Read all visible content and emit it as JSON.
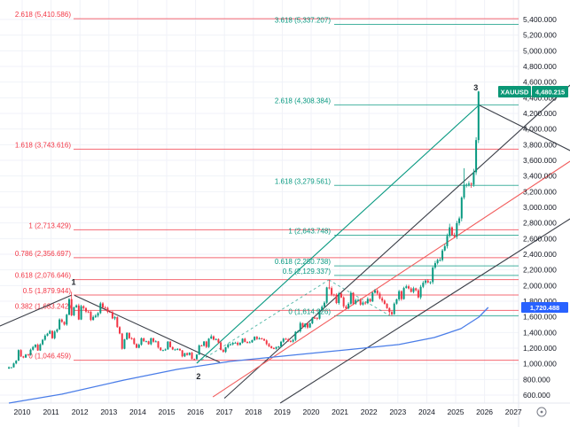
{
  "symbol_badge": {
    "symbol": "XAUUSD",
    "price": "4,480.215",
    "color": "#0a9776"
  },
  "ma_badge": {
    "value": "1,720.488",
    "color": "#2962ff"
  },
  "settings_icon": "circled-dot",
  "colors": {
    "candle_up": "#089981",
    "candle_down": "#f23645",
    "fib_red": "#f23645",
    "fib_green": "#089981",
    "trend_black": "#3a3e47",
    "trend_red": "#f25c5c",
    "ma_blue": "#4a7de8",
    "axis_text": "#131722",
    "grid": "#f0f2f8"
  },
  "price_axis_labels": [
    "5,400.000",
    "5,200.000",
    "5,000.000",
    "4,800.000",
    "4,600.000",
    "4,400.000",
    "4,200.000",
    "4,000.000",
    "3,800.000",
    "3,600.000",
    "3,400.000",
    "3,200.000",
    "3,000.000",
    "2,800.000",
    "2,600.000",
    "2,400.000",
    "2,200.000",
    "2,000.000",
    "1,800.000",
    "1,600.000",
    "1,400.000",
    "1,200.000",
    "1,000.000",
    "800.000",
    "600.000"
  ],
  "time_axis_labels": [
    "2010",
    "2011",
    "2012",
    "2013",
    "2014",
    "2015",
    "2016",
    "2017",
    "2018",
    "2019",
    "2020",
    "2021",
    "2022",
    "2023",
    "2024",
    "2025",
    "2026",
    "2027"
  ],
  "chart_data": {
    "type": "candlestick",
    "symbol": "XAUUSD",
    "timeframe": "monthly",
    "current_price": 4480.215,
    "ma_value": 1720.488,
    "price_scale": {
      "min": 600,
      "max": 5400,
      "step": 200
    },
    "time_scale": {
      "first_year_tick": 2010,
      "last_year_tick": 2027
    },
    "start_month": "2009-07",
    "prior_close": 940,
    "monthly_closes": [
      955,
      955,
      1005,
      1040,
      1175,
      1095,
      1080,
      1118,
      1115,
      1180,
      1215,
      1244,
      1170,
      1248,
      1307,
      1360,
      1385,
      1420,
      1327,
      1411,
      1439,
      1566,
      1536,
      1502,
      1628,
      1826,
      1620,
      1722,
      1746,
      1566,
      1737,
      1711,
      1668,
      1664,
      1560,
      1598,
      1615,
      1648,
      1772,
      1720,
      1715,
      1664,
      1661,
      1580,
      1596,
      1469,
      1387,
      1192,
      1312,
      1395,
      1327,
      1323,
      1253,
      1205,
      1244,
      1326,
      1288,
      1288,
      1250,
      1327,
      1282,
      1287,
      1208,
      1173,
      1175,
      1184,
      1283,
      1213,
      1183,
      1184,
      1190,
      1172,
      1095,
      1135,
      1114,
      1142,
      1061,
      1060,
      1118,
      1234,
      1232,
      1285,
      1215,
      1322,
      1351,
      1309,
      1316,
      1272,
      1178,
      1152,
      1211,
      1248,
      1249,
      1268,
      1269,
      1241,
      1269,
      1321,
      1280,
      1271,
      1275,
      1303,
      1345,
      1318,
      1325,
      1315,
      1298,
      1252,
      1224,
      1201,
      1192,
      1215,
      1222,
      1282,
      1321,
      1313,
      1292,
      1283,
      1305,
      1409,
      1414,
      1520,
      1472,
      1513,
      1464,
      1517,
      1589,
      1586,
      1577,
      1687,
      1730,
      1781,
      1976,
      1968,
      1886,
      1879,
      1777,
      1898,
      1848,
      1734,
      1708,
      1768,
      1907,
      1770,
      1814,
      1814,
      1757,
      1783,
      1775,
      1829,
      1797,
      1909,
      1937,
      1897,
      1837,
      1807,
      1766,
      1711,
      1661,
      1634,
      1769,
      1824,
      1928,
      1827,
      1969,
      1990,
      1963,
      1919,
      1965,
      1940,
      1849,
      1984,
      2036,
      2063,
      2040,
      2044,
      2230,
      2286,
      2327,
      2327,
      2448,
      2503,
      2635,
      2744,
      2643,
      2625,
      2798,
      2858,
      3124,
      3289,
      3289,
      3303,
      3290,
      3448,
      3859,
      4480
    ],
    "wick_extremes": {
      "2011-09": {
        "high": 1920.7
      },
      "2013-06": {
        "low": 1180.5
      },
      "2015-12": {
        "low": 1046.459
      },
      "2016-07": {
        "high": 1375.3
      },
      "2020-08": {
        "high": 2075.28
      },
      "2022-09": {
        "low": 1614.926
      },
      "2024-10": {
        "high": 2790.1
      },
      "2025-04": {
        "high": 3500.2
      },
      "2025-10": {
        "high": 4487
      }
    },
    "fib_extension_red": {
      "color": "#f23645",
      "levels": [
        {
          "label": "2.618 (5,410.586)",
          "price": 5410.586
        },
        {
          "label": "1.618 (3,743.616)",
          "price": 3743.616
        },
        {
          "label": "1 (2,713.429)",
          "price": 2713.429
        },
        {
          "label": "0.786 (2,356.697)",
          "price": 2356.697
        },
        {
          "label": "0.618 (2,076.646)",
          "price": 2076.646
        },
        {
          "label": "0.5 (1,879.944)",
          "price": 1879.944
        },
        {
          "label": "0.382 (1,683.242)",
          "price": 1683.242
        },
        {
          "label": "0 (1,046.459)",
          "price": 1046.459
        }
      ]
    },
    "fib_extension_green": {
      "color": "#089981",
      "levels": [
        {
          "label": "3.618 (5,337.207)",
          "price": 5337.207
        },
        {
          "label": "2.618 (4,308.384)",
          "price": 4308.384
        },
        {
          "label": "1.618 (3,279.561)",
          "price": 3279.561
        },
        {
          "label": "1 (2,643.748)",
          "price": 2643.748
        },
        {
          "label": "0.618 (2,250.738)",
          "price": 2250.738
        },
        {
          "label": "0.5 (2,129.337)",
          "price": 2129.337
        },
        {
          "label": "0 (1,614.926)",
          "price": 1614.926
        }
      ]
    },
    "wave_labels": [
      {
        "text": "1",
        "t": 2011.78,
        "p": 2010
      },
      {
        "text": "2",
        "t": 2016.1,
        "p": 804
      },
      {
        "text": "3",
        "t": 2025.7,
        "p": 4495
      }
    ],
    "trend_lines": [
      {
        "name": "wave-0-1-line",
        "color": "#3a3e47",
        "t1": 2009.23,
        "p1": 1483,
        "t2": 2011.72,
        "p2": 1879
      },
      {
        "name": "wave-1-2-line",
        "color": "#3a3e47",
        "t1": 2011.81,
        "p1": 1875,
        "t2": 2016.84,
        "p2": 1019
      },
      {
        "name": "triangle-green-line",
        "color": "#089981",
        "t1": 2016.04,
        "p1": 1008,
        "t2": 2025.83,
        "p2": 4313
      },
      {
        "name": "apex-descending-line",
        "color": "#3a3e47",
        "t1": 2025.83,
        "p1": 4302,
        "t2": 2028.96,
        "p2": 3725
      },
      {
        "name": "channel-upper-line",
        "color": "#3a3e47",
        "t1": 2017.0,
        "p1": 560,
        "t2": 2028.96,
        "p2": 4562
      },
      {
        "name": "channel-lower-line",
        "color": "#3a3e47",
        "t1": 2018.93,
        "p1": 498,
        "t2": 2028.96,
        "p2": 2853
      },
      {
        "name": "red-ascending-line",
        "color": "#f25c5c",
        "t1": 2016.6,
        "p1": 577,
        "t2": 2028.96,
        "p2": 3589
      }
    ],
    "dashed_connectors": [
      {
        "t1": 2016.04,
        "p1": 1008,
        "t2": 2020.61,
        "p2": 2072
      },
      {
        "t1": 2020.61,
        "p1": 2072,
        "t2": 2022.7,
        "p2": 1619
      }
    ],
    "ma_line_points": [
      [
        2009.54,
        498
      ],
      [
        2011.38,
        612
      ],
      [
        2013.53,
        793
      ],
      [
        2015.37,
        929
      ],
      [
        2017.21,
        1031
      ],
      [
        2019.36,
        1110
      ],
      [
        2021.5,
        1189
      ],
      [
        2023.04,
        1246
      ],
      [
        2024.26,
        1336
      ],
      [
        2025.18,
        1449
      ],
      [
        2025.8,
        1596
      ],
      [
        2026.13,
        1721
      ]
    ]
  }
}
